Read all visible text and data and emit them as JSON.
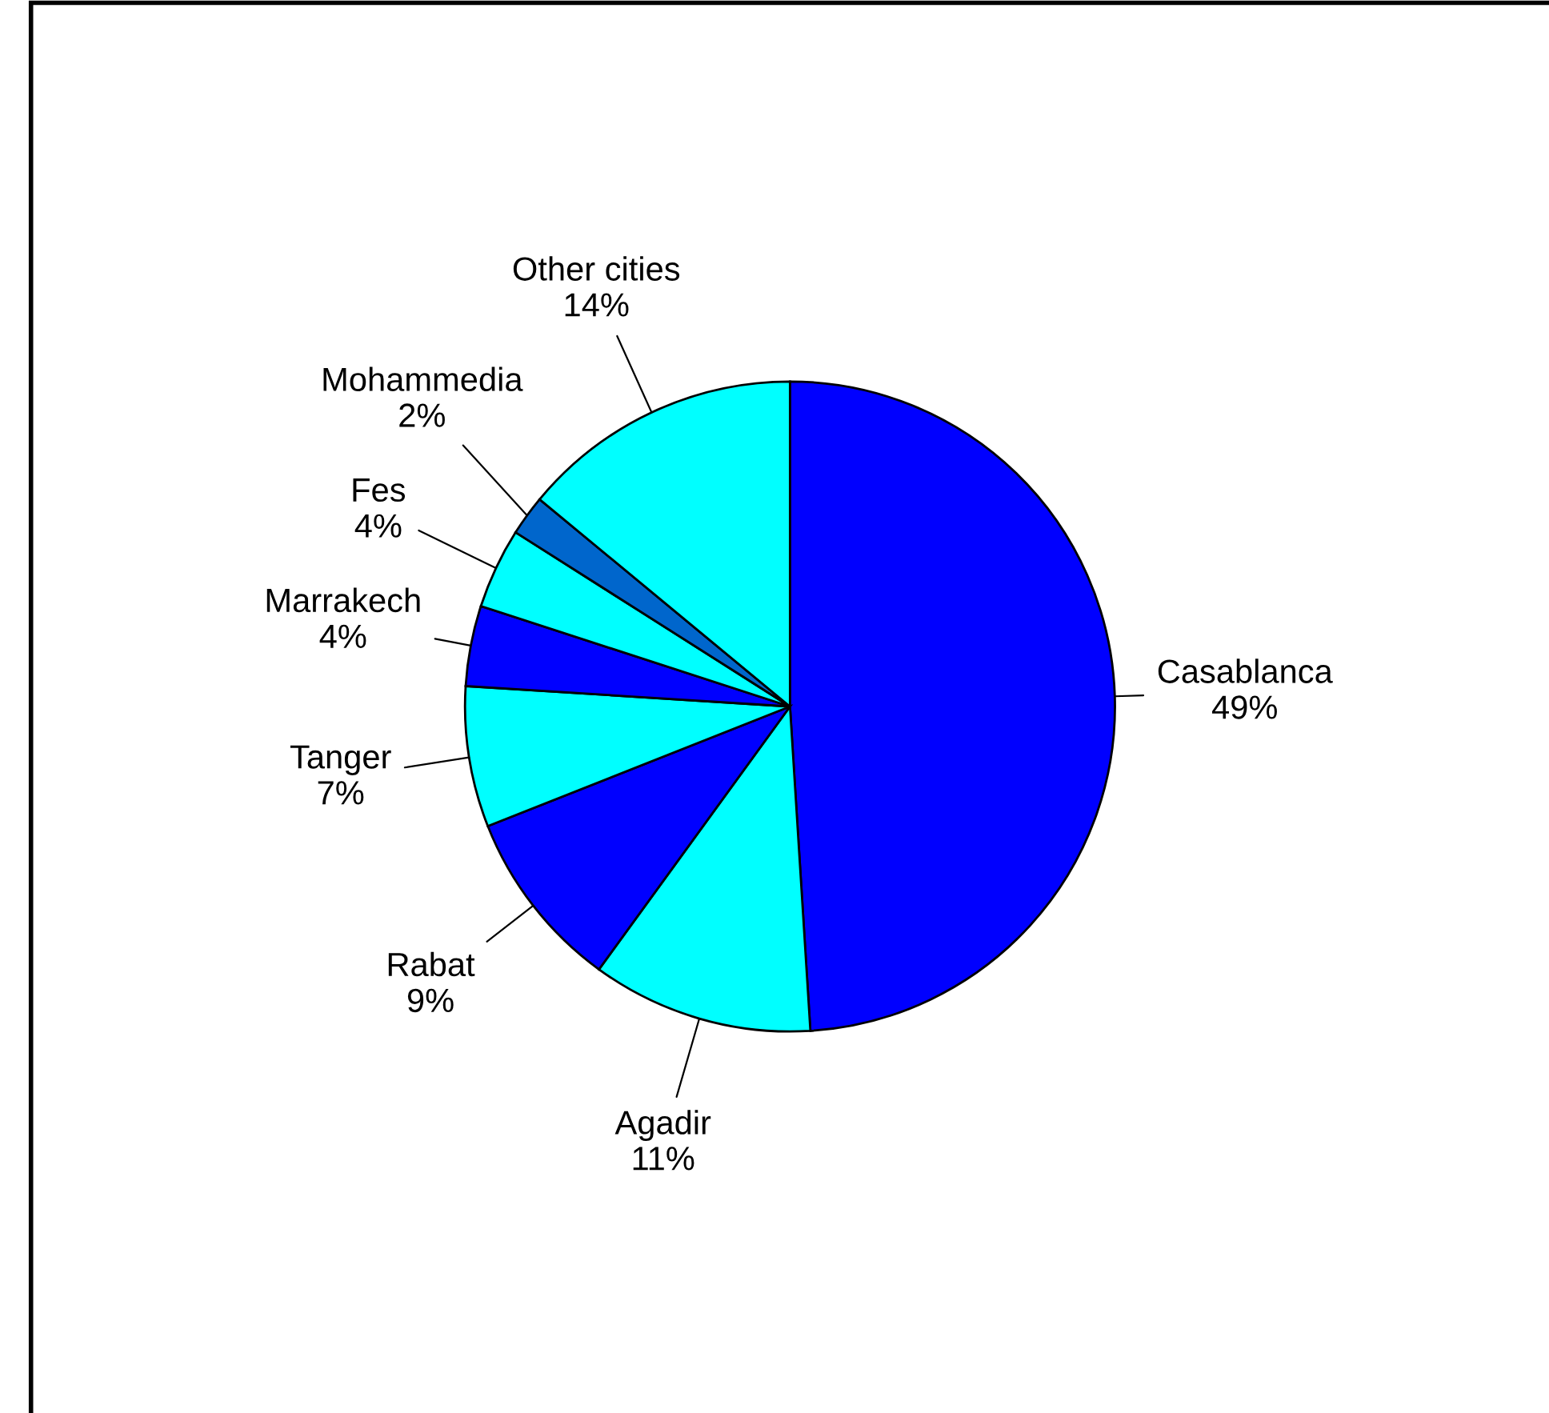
{
  "chart_data": {
    "type": "pie",
    "categories": [
      "Casablanca",
      "Agadir",
      "Rabat",
      "Tanger",
      "Marrakech",
      "Fes",
      "Mohammedia",
      "Other cities"
    ],
    "values": [
      49,
      11,
      9,
      7,
      4,
      4,
      2,
      14
    ],
    "value_labels": [
      "49%",
      "11%",
      "9%",
      "7%",
      "4%",
      "4%",
      "2%",
      "14%"
    ],
    "colors": [
      "#0000ff",
      "#00ffff",
      "#0000ff",
      "#00ffff",
      "#0000ff",
      "#00ffff",
      "#0066cc",
      "#00ffff"
    ]
  }
}
